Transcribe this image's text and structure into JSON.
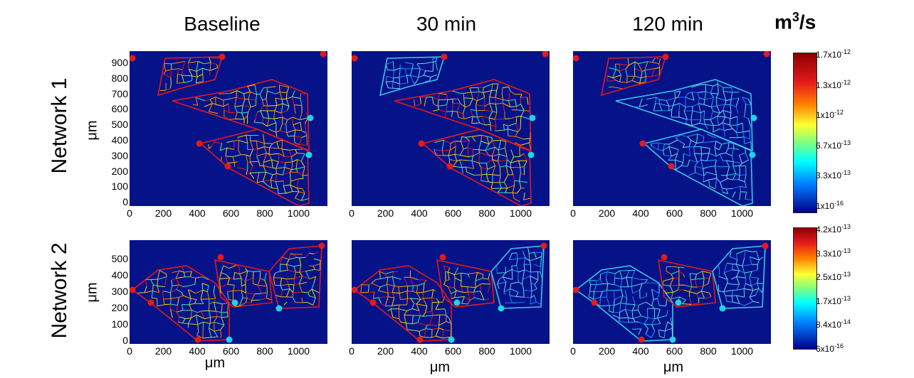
{
  "columns": [
    "Baseline",
    "30 min",
    "120 min"
  ],
  "rows": [
    "Network 1",
    "Network 2"
  ],
  "unit": {
    "base": "m",
    "exp": "3",
    "rest": "/s"
  },
  "axis_label": "μm",
  "net1_yticks": [
    "900",
    "800",
    "700",
    "600",
    "500",
    "400",
    "300",
    "200",
    "100",
    "0"
  ],
  "net2_yticks": [
    "500",
    "400",
    "300",
    "200",
    "100",
    "0"
  ],
  "xticks": [
    "0",
    "200",
    "400",
    "600",
    "800",
    "1000"
  ],
  "colorbar1": [
    {
      "m": "1.7x10",
      "e": "-12"
    },
    {
      "m": "1.3x10",
      "e": "-12"
    },
    {
      "m": "1x10",
      "e": "-12"
    },
    {
      "m": "6.7x10",
      "e": "-13"
    },
    {
      "m": "3.3x10",
      "e": "-13"
    },
    {
      "m": "1x10",
      "e": "-16"
    }
  ],
  "colorbar2": [
    {
      "m": "4.2x10",
      "e": "-13"
    },
    {
      "m": "3.3x10",
      "e": "-13"
    },
    {
      "m": "2.5x10",
      "e": "-13"
    },
    {
      "m": "1.7x10",
      "e": "-13"
    },
    {
      "m": "8.4x10",
      "e": "-14"
    },
    {
      "m": "6x10",
      "e": "-16"
    }
  ],
  "colors": {
    "background": "#061288",
    "inlet": "#e31a1c",
    "outlet": "#22d3e6"
  }
}
